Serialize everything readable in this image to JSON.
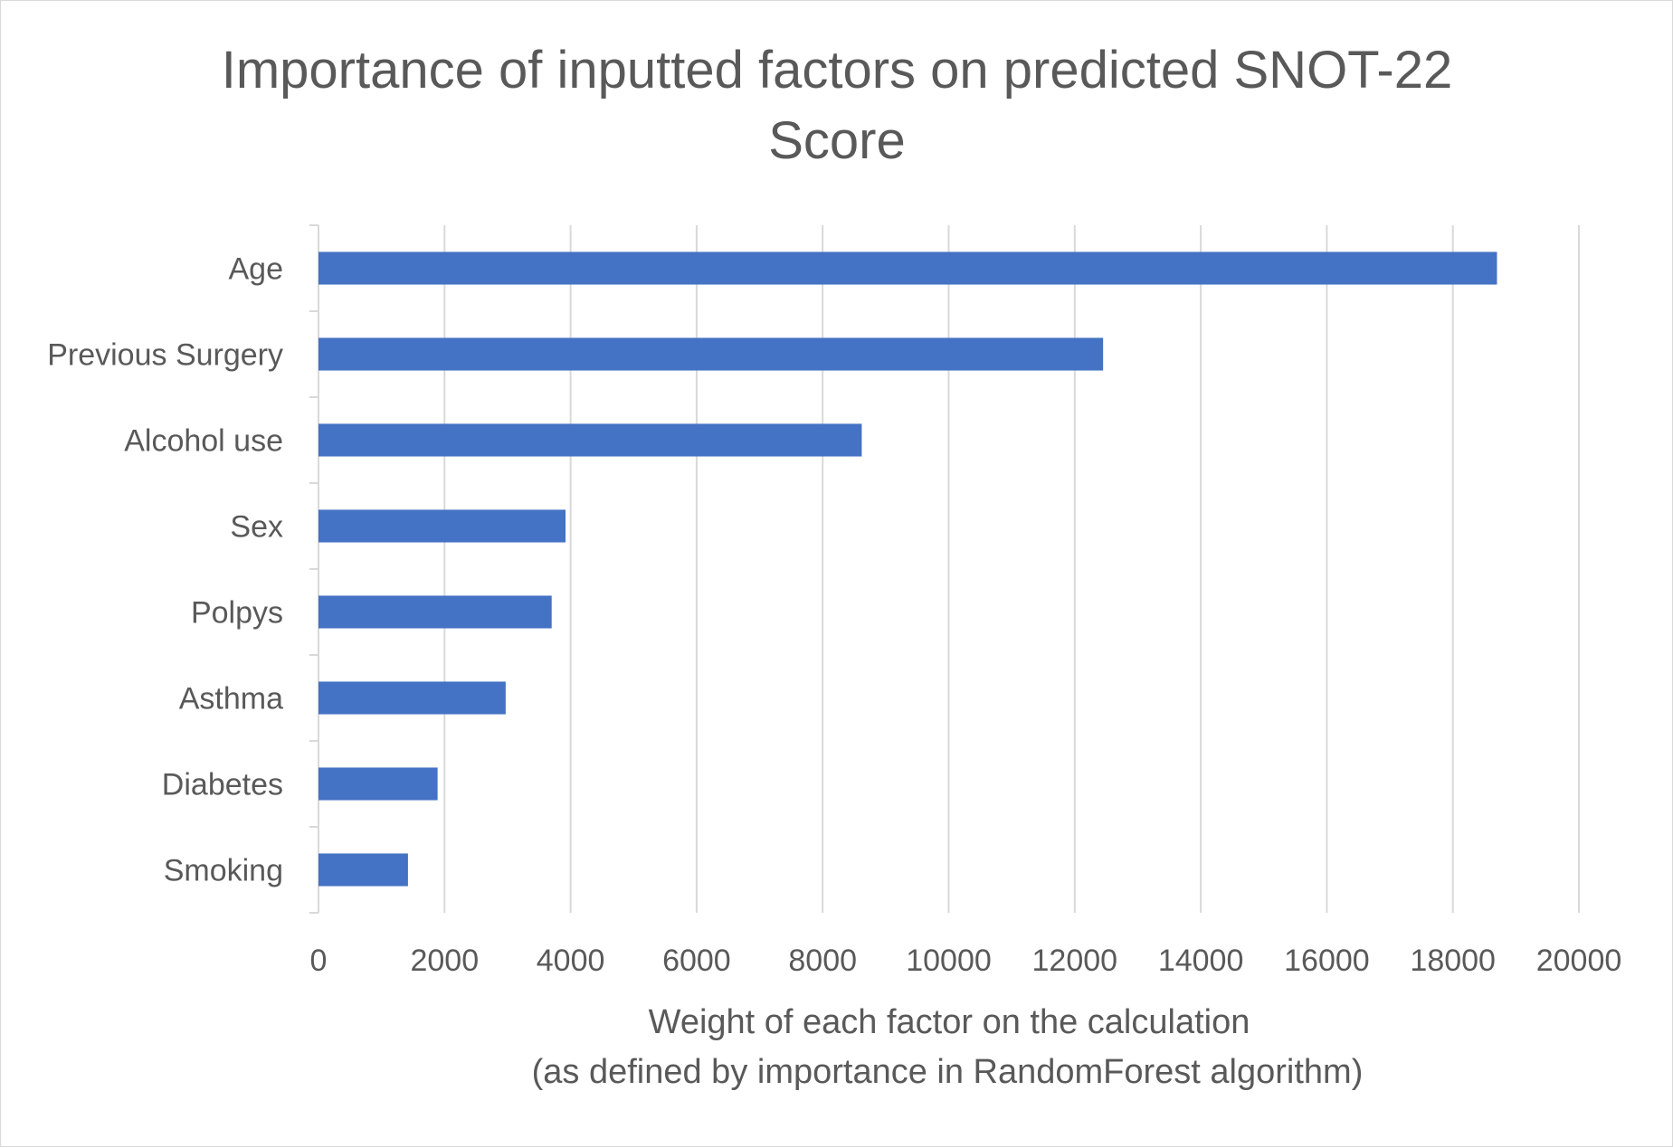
{
  "chart_data": {
    "type": "bar",
    "orientation": "horizontal",
    "title_lines": [
      "Importance of inputted factors on predicted SNOT-22",
      "Score"
    ],
    "xlabel_lines": [
      "Weight of each factor on the calculation",
      "(as defined by importance in RandomForest algorithm)"
    ],
    "ylabel": "",
    "categories": [
      "Age",
      "Previous Surgery",
      "Alcohol use",
      "Sex",
      "Polpys",
      "Asthma",
      "Diabetes",
      "Smoking"
    ],
    "values": [
      18700,
      12450,
      8620,
      3920,
      3700,
      2970,
      1890,
      1420
    ],
    "xlim": [
      0,
      20000
    ],
    "xticks": [
      "0",
      "2000",
      "4000",
      "6000",
      "8000",
      "10000",
      "12000",
      "14000",
      "16000",
      "18000",
      "20000"
    ],
    "grid": true,
    "legend": "none",
    "bar_color": "#4472c4",
    "grid_color": "#d9d9d9",
    "text_color": "#595959"
  }
}
